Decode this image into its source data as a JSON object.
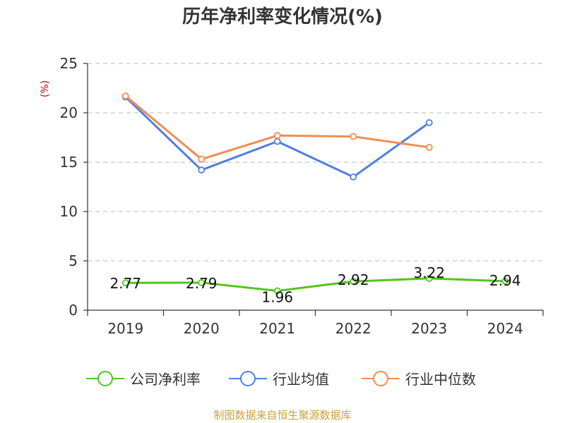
{
  "chart_data": {
    "type": "line",
    "title": "历年净利率变化情况(%)",
    "unit_label": "(%)",
    "categories": [
      "2019",
      "2020",
      "2021",
      "2022",
      "2023",
      "2024"
    ],
    "ylim": [
      0,
      25
    ],
    "yticks": [
      "0",
      "5",
      "10",
      "15",
      "20",
      "25"
    ],
    "grid": true,
    "legend_position": "bottom",
    "series": [
      {
        "name": "公司净利率",
        "color": "#52c41a",
        "values": [
          2.77,
          2.79,
          1.96,
          2.92,
          3.22,
          2.94
        ],
        "labels": [
          "2.77",
          "2.79",
          "1.96",
          "2.92",
          "3.22",
          "2.94"
        ]
      },
      {
        "name": "行业均值",
        "color": "#4f7fe0",
        "values": [
          21.6,
          14.2,
          17.1,
          13.5,
          19.0,
          null
        ]
      },
      {
        "name": "行业中位数",
        "color": "#f28c54",
        "values": [
          21.7,
          15.3,
          17.7,
          17.6,
          16.5,
          null
        ]
      }
    ]
  },
  "footer": {
    "source": "制图数据来自恒生聚源数据库"
  }
}
